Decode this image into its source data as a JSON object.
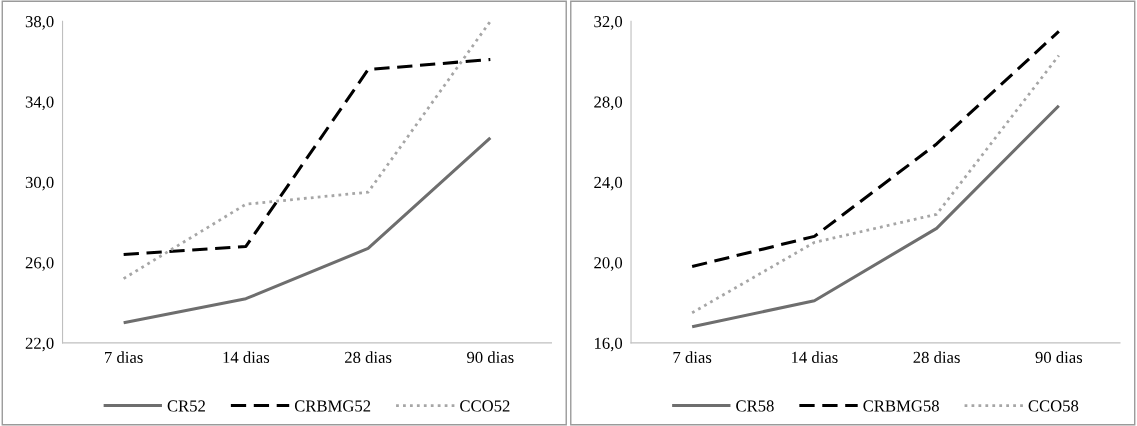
{
  "chart_data": [
    {
      "type": "line",
      "categories": [
        "7 dias",
        "14 dias",
        "28 dias",
        "90 dias"
      ],
      "series": [
        {
          "name": "CR52",
          "color": "#6e6e6e",
          "line_style": "solid",
          "values": [
            23.0,
            24.2,
            26.7,
            32.2
          ]
        },
        {
          "name": "CRBMG52",
          "color": "#000000",
          "line_style": "dashed",
          "values": [
            26.4,
            26.8,
            35.6,
            36.1
          ]
        },
        {
          "name": "CCO52",
          "color": "#a6a6a6",
          "line_style": "dotted",
          "values": [
            25.2,
            28.9,
            29.5,
            38.0
          ]
        }
      ],
      "ylim": [
        22,
        38
      ],
      "yticks": [
        {
          "value": 22,
          "label": "22,0"
        },
        {
          "value": 26,
          "label": "26,0"
        },
        {
          "value": 30,
          "label": "30,0"
        },
        {
          "value": 34,
          "label": "34,0"
        },
        {
          "value": 38,
          "label": "38,0"
        }
      ],
      "grid": false,
      "legend": "bottom",
      "marker": "none"
    },
    {
      "type": "line",
      "categories": [
        "7 dias",
        "14 dias",
        "28 dias",
        "90 dias"
      ],
      "series": [
        {
          "name": "CR58",
          "color": "#6e6e6e",
          "line_style": "solid",
          "values": [
            16.8,
            18.1,
            21.7,
            27.8
          ]
        },
        {
          "name": "CRBMG58",
          "color": "#000000",
          "line_style": "dashed",
          "values": [
            19.8,
            21.3,
            25.9,
            31.5
          ]
        },
        {
          "name": "CCO58",
          "color": "#a6a6a6",
          "line_style": "dotted",
          "values": [
            17.5,
            21.0,
            22.4,
            30.3
          ]
        }
      ],
      "ylim": [
        16,
        32
      ],
      "yticks": [
        {
          "value": 16,
          "label": "16,0"
        },
        {
          "value": 20,
          "label": "20,0"
        },
        {
          "value": 24,
          "label": "24,0"
        },
        {
          "value": 28,
          "label": "28,0"
        },
        {
          "value": 32,
          "label": "32,0"
        }
      ],
      "grid": false,
      "legend": "bottom",
      "marker": "none"
    }
  ]
}
